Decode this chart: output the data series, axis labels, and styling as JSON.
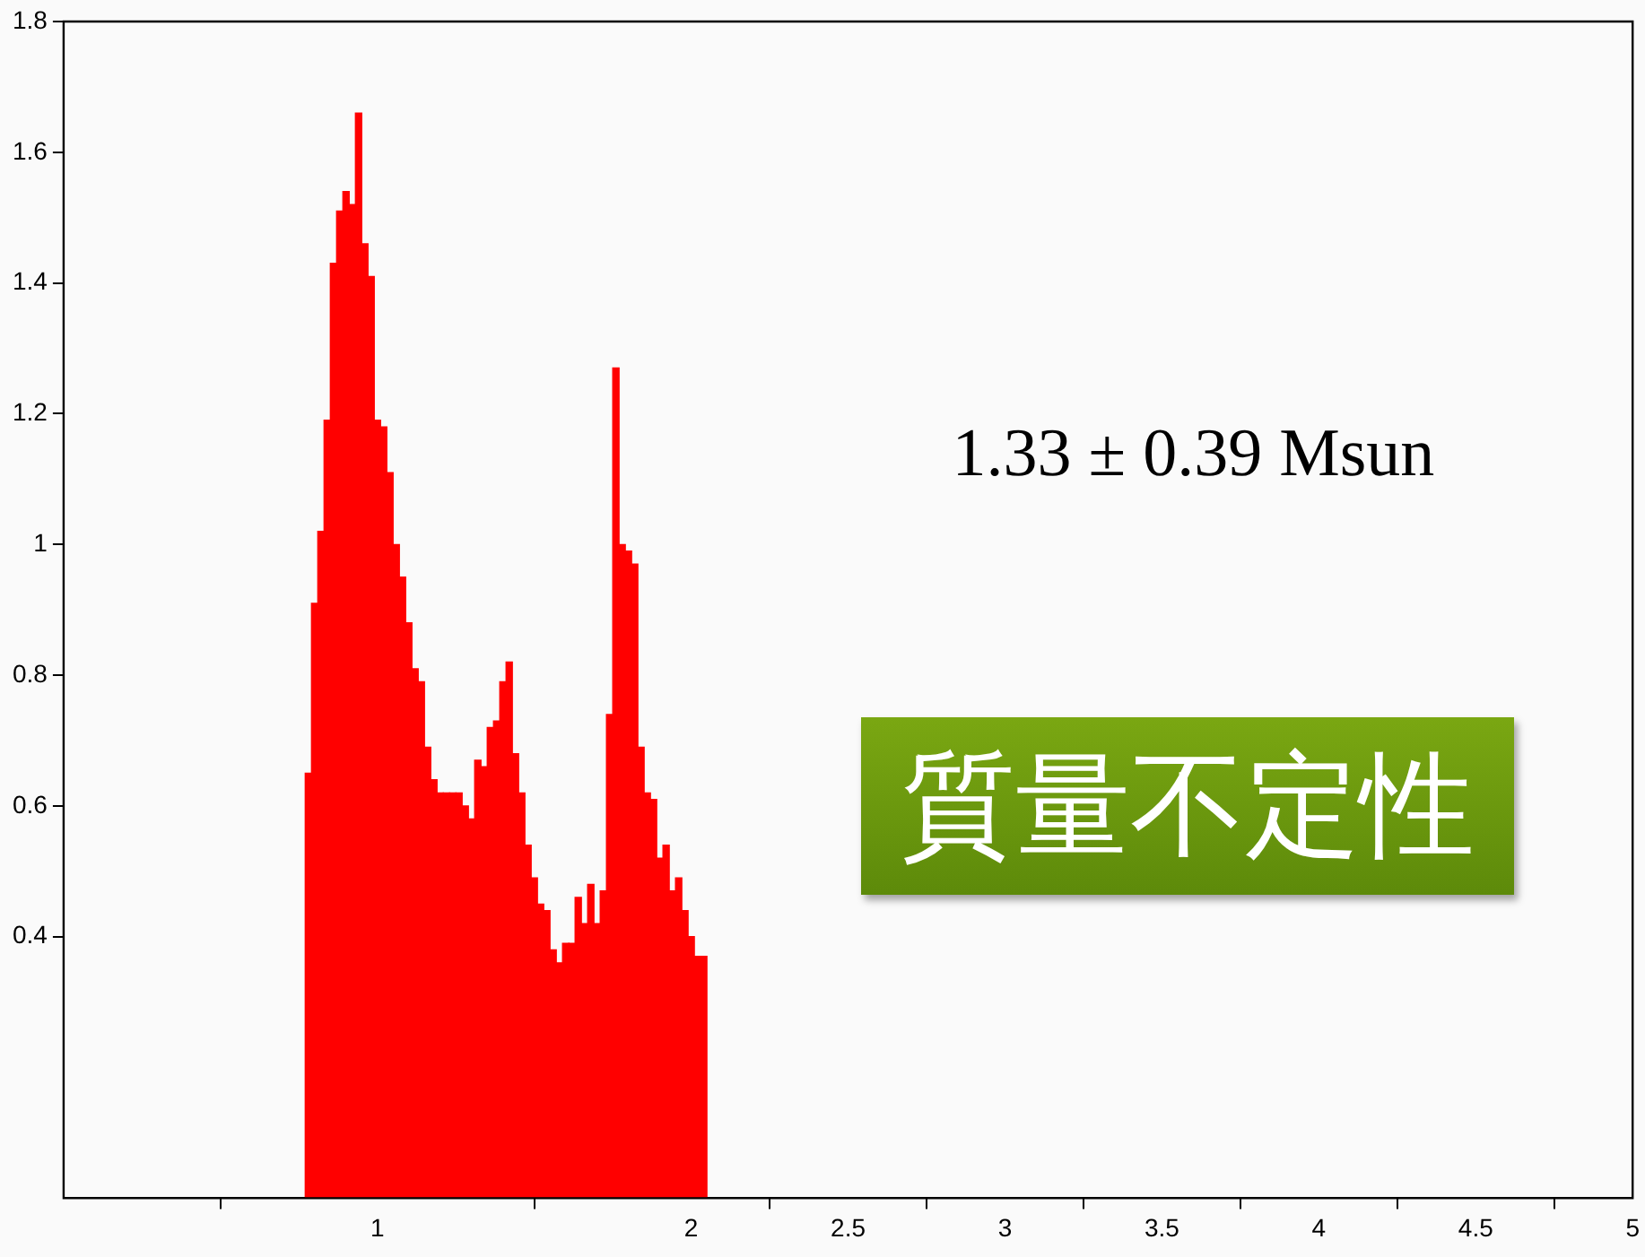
{
  "chart_data": {
    "type": "histogram",
    "title": "質量不定性",
    "bins": [
      0.77,
      0.79,
      0.81,
      0.83,
      0.85,
      0.87,
      0.89,
      0.91,
      0.93,
      0.95,
      0.97,
      0.99,
      1.01,
      1.03,
      1.05,
      1.07,
      1.09,
      1.11,
      1.13,
      1.15,
      1.17,
      1.19,
      1.21,
      1.23,
      1.25,
      1.27,
      1.29,
      1.31,
      1.33,
      1.35,
      1.37,
      1.39,
      1.41,
      1.43,
      1.45,
      1.47,
      1.49,
      1.51,
      1.53,
      1.55,
      1.57,
      1.59,
      1.61,
      1.63,
      1.65,
      1.67,
      1.69,
      1.71,
      1.73,
      1.75,
      1.77,
      1.79,
      1.81,
      1.83,
      1.85,
      1.87,
      1.89,
      1.91,
      1.93,
      1.95,
      1.97,
      1.99,
      2.01,
      2.03,
      2.05
    ],
    "values": [
      0.65,
      0.91,
      1.02,
      1.19,
      1.43,
      1.51,
      1.54,
      1.52,
      1.66,
      1.46,
      1.41,
      1.19,
      1.18,
      1.11,
      1.0,
      0.95,
      0.88,
      0.81,
      0.79,
      0.69,
      0.64,
      0.62,
      0.62,
      0.62,
      0.62,
      0.6,
      0.58,
      0.67,
      0.66,
      0.72,
      0.73,
      0.79,
      0.82,
      0.68,
      0.62,
      0.54,
      0.49,
      0.45,
      0.44,
      0.38,
      0.36,
      0.39,
      0.39,
      0.46,
      0.42,
      0.48,
      0.42,
      0.47,
      0.74,
      1.27,
      1.0,
      0.99,
      0.97,
      0.69,
      0.62,
      0.61,
      0.52,
      0.54,
      0.47,
      0.49,
      0.44,
      0.4,
      0.37,
      0.37
    ],
    "color": "#ff0000",
    "xlim": [
      0,
      5
    ],
    "xticks": [
      1,
      2,
      2.5,
      3,
      3.5,
      4,
      4.5,
      5
    ],
    "ylim": [
      0,
      1.8
    ],
    "yticks": [
      0.4,
      0.6,
      0.8,
      1,
      1.2,
      1.4,
      1.6,
      1.8
    ],
    "grid": false,
    "legend": false,
    "annotations": [
      "1.33 ± 0.39 Msun"
    ]
  }
}
